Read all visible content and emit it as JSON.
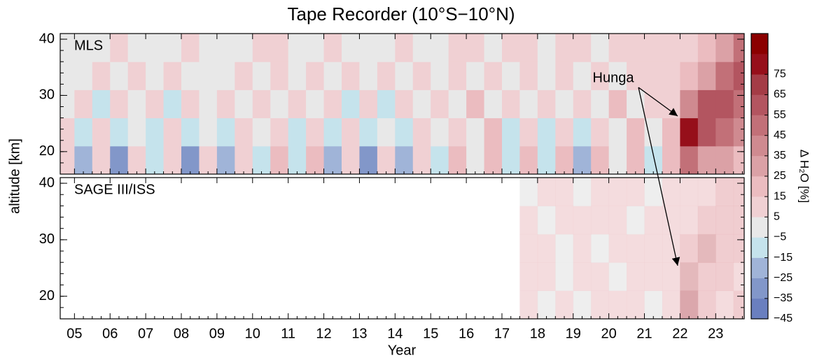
{
  "chart_data": {
    "type": "heatmap",
    "title": "Tape Recorder (10°S−10°N)",
    "xlabel": "Year",
    "ylabel": "altitude [km]",
    "xlim": [
      2004.6,
      2023.8
    ],
    "xticks": [
      {
        "value": 2005,
        "label": "05"
      },
      {
        "value": 2006,
        "label": "06"
      },
      {
        "value": 2007,
        "label": "07"
      },
      {
        "value": 2008,
        "label": "08"
      },
      {
        "value": 2009,
        "label": "09"
      },
      {
        "value": 2010,
        "label": "10"
      },
      {
        "value": 2011,
        "label": "11"
      },
      {
        "value": 2012,
        "label": "12"
      },
      {
        "value": 2013,
        "label": "13"
      },
      {
        "value": 2014,
        "label": "14"
      },
      {
        "value": 2015,
        "label": "15"
      },
      {
        "value": 2016,
        "label": "16"
      },
      {
        "value": 2017,
        "label": "17"
      },
      {
        "value": 2018,
        "label": "18"
      },
      {
        "value": 2019,
        "label": "19"
      },
      {
        "value": 2020,
        "label": "20"
      },
      {
        "value": 2021,
        "label": "21"
      },
      {
        "value": 2022,
        "label": "22"
      },
      {
        "value": 2023,
        "label": "23"
      }
    ],
    "ylim": [
      16,
      41
    ],
    "yticks": [
      20,
      30,
      40
    ],
    "x": [
      2004.75,
      2005.25,
      2005.75,
      2006.25,
      2006.75,
      2007.25,
      2007.75,
      2008.25,
      2008.75,
      2009.25,
      2009.75,
      2010.25,
      2010.75,
      2011.25,
      2011.75,
      2012.25,
      2012.75,
      2013.25,
      2013.75,
      2014.25,
      2014.75,
      2015.25,
      2015.75,
      2016.25,
      2016.75,
      2017.25,
      2017.75,
      2018.25,
      2018.75,
      2019.25,
      2019.75,
      2020.25,
      2020.75,
      2021.25,
      2021.75,
      2022.25,
      2022.75,
      2023.25,
      2023.75
    ],
    "altitude": [
      18.5,
      23.5,
      28.5,
      33.5,
      38.5
    ],
    "panels": [
      {
        "label": "MLS",
        "values": [
          [
            10,
            -20,
            10,
            -30,
            5,
            -15,
            10,
            -30,
            5,
            -20,
            10,
            -10,
            15,
            -15,
            15,
            -20,
            5,
            -30,
            5,
            -20,
            10,
            -15,
            15,
            -5,
            20,
            -15,
            15,
            -15,
            15,
            -20,
            15,
            -5,
            20,
            -10,
            20,
            45,
            30,
            25,
            20
          ],
          [
            5,
            -10,
            5,
            -15,
            0,
            -10,
            5,
            -15,
            0,
            -10,
            5,
            -5,
            10,
            -10,
            10,
            -10,
            5,
            -15,
            0,
            -10,
            5,
            -5,
            10,
            0,
            15,
            -10,
            10,
            -10,
            10,
            -10,
            10,
            0,
            15,
            -5,
            15,
            75,
            55,
            45,
            35
          ],
          [
            -5,
            5,
            -10,
            5,
            -5,
            5,
            -10,
            5,
            -5,
            5,
            -5,
            10,
            -5,
            10,
            -5,
            5,
            -10,
            5,
            -10,
            5,
            -5,
            10,
            -5,
            15,
            -5,
            10,
            -5,
            10,
            -5,
            10,
            -5,
            15,
            0,
            10,
            5,
            35,
            55,
            55,
            45
          ],
          [
            0,
            -5,
            5,
            -5,
            5,
            -5,
            5,
            -5,
            0,
            0,
            5,
            -5,
            10,
            0,
            5,
            -5,
            5,
            -5,
            5,
            0,
            5,
            -5,
            10,
            -5,
            10,
            0,
            5,
            -5,
            10,
            -5,
            10,
            -5,
            10,
            5,
            10,
            15,
            25,
            45,
            55
          ],
          [
            0,
            0,
            -5,
            5,
            0,
            -5,
            0,
            5,
            0,
            -5,
            0,
            5,
            5,
            0,
            0,
            5,
            0,
            -5,
            0,
            5,
            0,
            0,
            5,
            5,
            0,
            5,
            5,
            0,
            5,
            5,
            0,
            5,
            5,
            10,
            10,
            10,
            15,
            25,
            45
          ]
        ]
      },
      {
        "label": "SAGE III/ISS",
        "values": [
          [
            null,
            null,
            null,
            null,
            null,
            null,
            null,
            null,
            null,
            null,
            null,
            null,
            null,
            null,
            null,
            null,
            null,
            null,
            null,
            null,
            null,
            null,
            null,
            null,
            null,
            null,
            5,
            -5,
            5,
            -5,
            5,
            5,
            5,
            -5,
            5,
            35,
            15,
            10,
            15
          ],
          [
            null,
            null,
            null,
            null,
            null,
            null,
            null,
            null,
            null,
            null,
            null,
            null,
            null,
            null,
            null,
            null,
            null,
            null,
            null,
            null,
            null,
            null,
            null,
            null,
            null,
            null,
            5,
            5,
            0,
            5,
            5,
            0,
            5,
            5,
            5,
            25,
            15,
            15,
            10
          ],
          [
            null,
            null,
            null,
            null,
            null,
            null,
            null,
            null,
            null,
            null,
            null,
            null,
            null,
            null,
            null,
            null,
            null,
            null,
            null,
            null,
            null,
            null,
            null,
            null,
            null,
            null,
            5,
            5,
            0,
            5,
            0,
            5,
            5,
            5,
            5,
            15,
            25,
            15,
            15
          ],
          [
            null,
            null,
            null,
            null,
            null,
            null,
            null,
            null,
            null,
            null,
            null,
            null,
            null,
            null,
            null,
            null,
            null,
            null,
            null,
            null,
            null,
            null,
            null,
            null,
            null,
            null,
            5,
            0,
            5,
            5,
            5,
            5,
            0,
            5,
            5,
            5,
            15,
            15,
            15
          ],
          [
            null,
            null,
            null,
            null,
            null,
            null,
            null,
            null,
            null,
            null,
            null,
            null,
            null,
            null,
            null,
            null,
            null,
            null,
            null,
            null,
            null,
            null,
            null,
            null,
            null,
            null,
            0,
            5,
            5,
            0,
            5,
            5,
            5,
            0,
            5,
            5,
            5,
            15,
            15
          ]
        ]
      }
    ],
    "colorbar": {
      "label": "Δ H₂O [%]",
      "lim": [
        -45,
        95
      ],
      "ticks": [
        {
          "value": -45,
          "label": "−45"
        },
        {
          "value": -35,
          "label": "−35"
        },
        {
          "value": -25,
          "label": "−25"
        },
        {
          "value": -15,
          "label": "−15"
        },
        {
          "value": -5,
          "label": "−5"
        },
        5,
        15,
        25,
        35,
        45,
        55,
        65,
        75
      ],
      "colors": [
        "#6a7fbf",
        "#8297c9",
        "#a0b4d8",
        "#c5e3ec",
        "#e8e8e8",
        "#f0d0d3",
        "#ebbcc0",
        "#dba1a6",
        "#cf8a90",
        "#c27078",
        "#b35560",
        "#a43c46",
        "#960f1a",
        "#8b0000"
      ]
    },
    "annotations": [
      {
        "text": "Hunga"
      }
    ]
  }
}
